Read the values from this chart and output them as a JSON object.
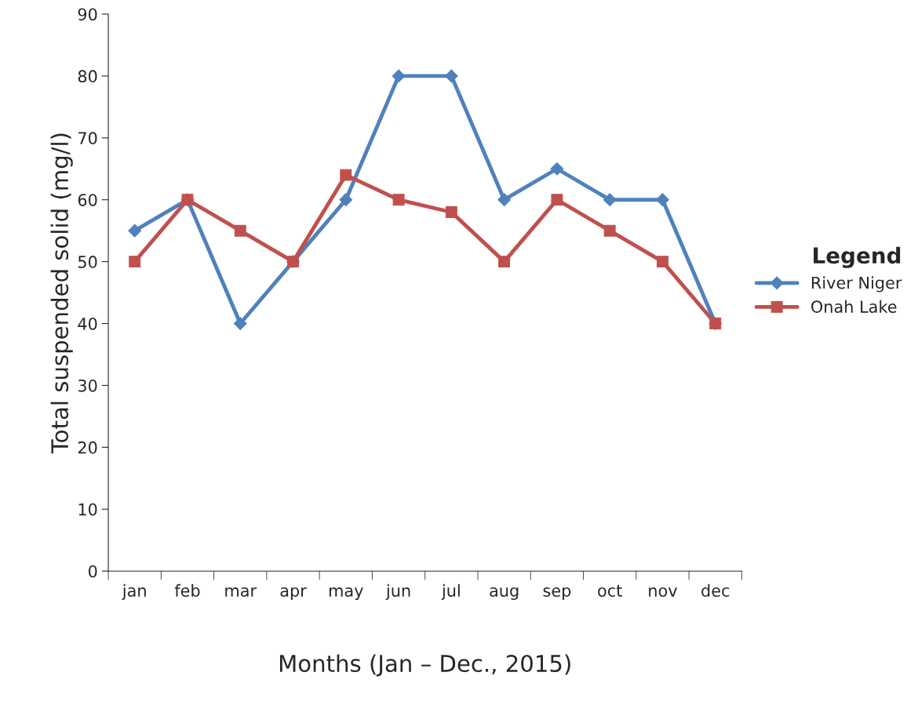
{
  "chart_data": {
    "type": "line",
    "xlabel": "Months (Jan – Dec., 2015)",
    "ylabel": "Total suspended solid (mg/l)",
    "legend_title": "Legend",
    "categories": [
      "jan",
      "feb",
      "mar",
      "apr",
      "may",
      "jun",
      "jul",
      "aug",
      "sep",
      "oct",
      "nov",
      "dec"
    ],
    "series": [
      {
        "name": "River Niger",
        "color": "#4f81bd",
        "marker": "diamond",
        "values": [
          55,
          60,
          40,
          50,
          60,
          80,
          80,
          60,
          65,
          60,
          60,
          40
        ]
      },
      {
        "name": "Onah Lake",
        "color": "#c0504d",
        "marker": "square",
        "values": [
          50,
          60,
          55,
          50,
          64,
          60,
          58,
          50,
          60,
          55,
          50,
          40
        ]
      }
    ],
    "ylim": [
      0,
      90
    ],
    "yticks": [
      0,
      10,
      20,
      30,
      40,
      50,
      60,
      70,
      80,
      90
    ],
    "grid": false,
    "legend": "right",
    "line_style": "solid"
  }
}
